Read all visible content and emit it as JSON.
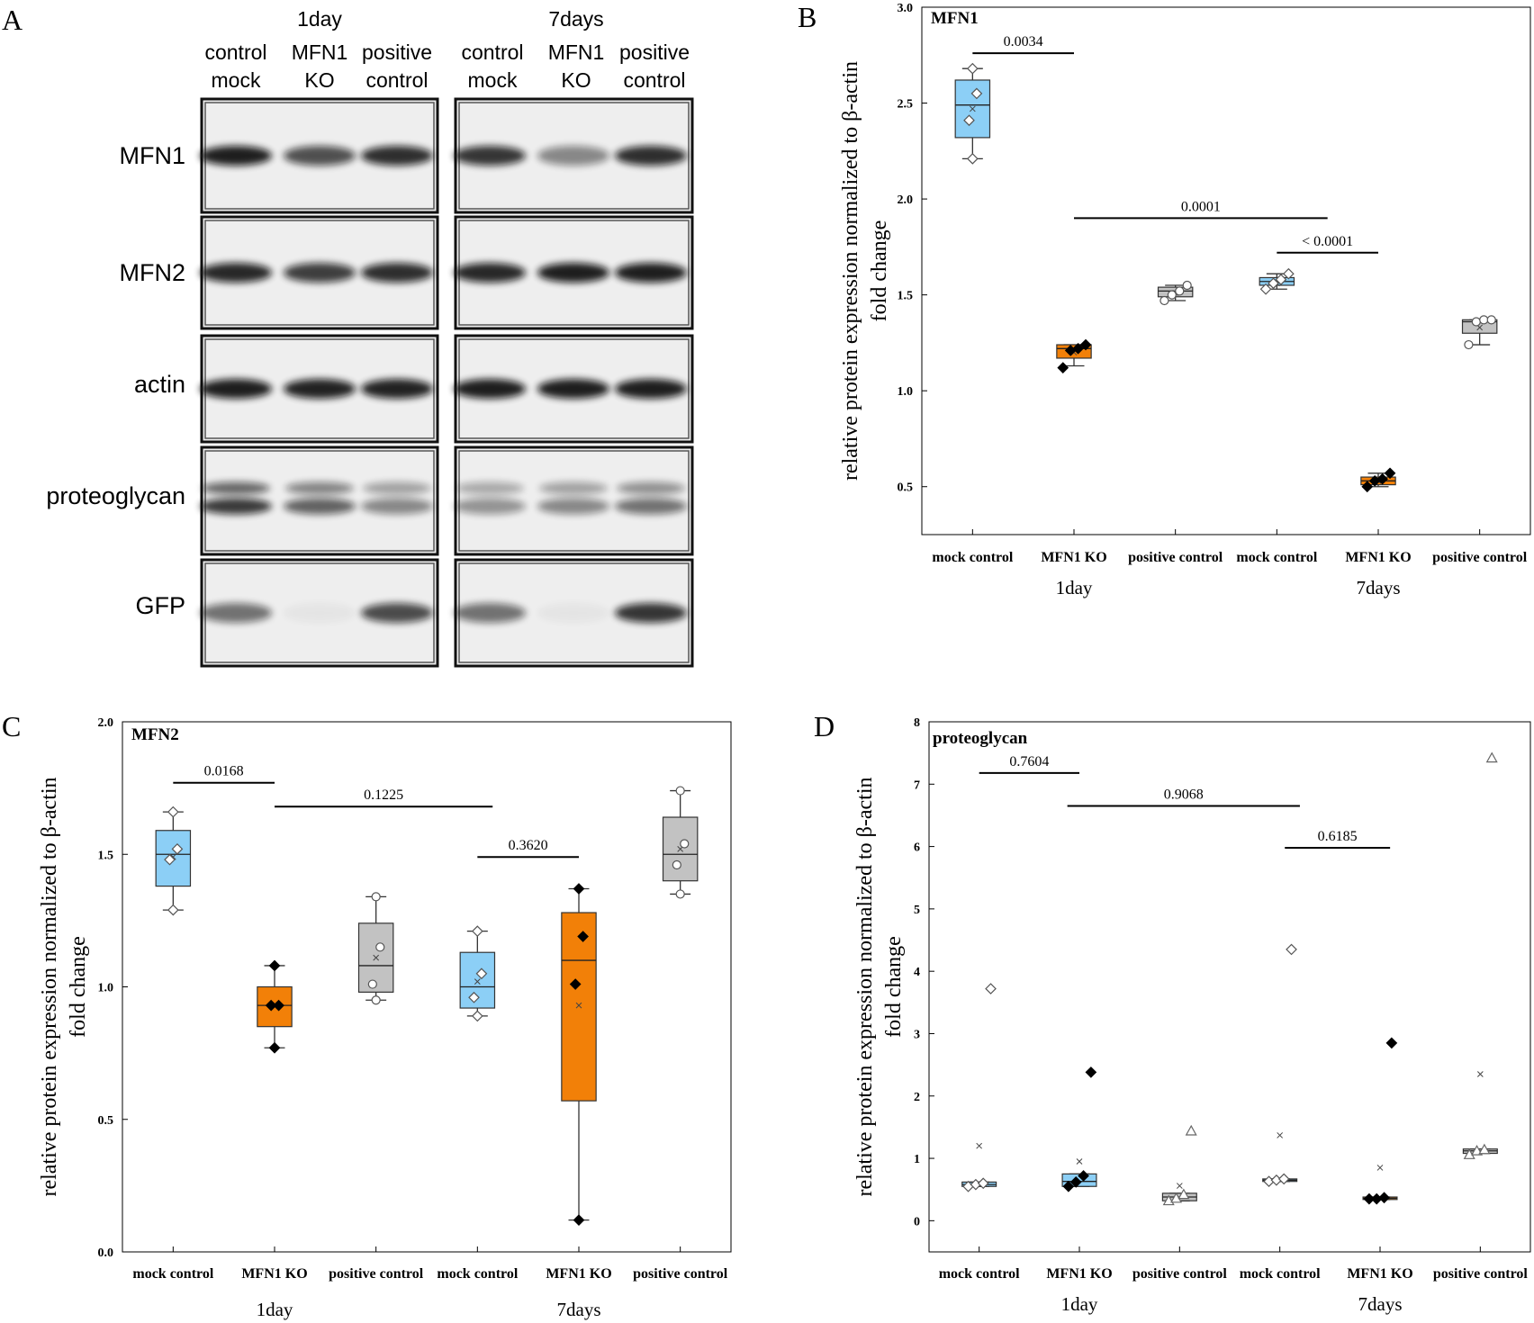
{
  "panel_letters": [
    "A",
    "B",
    "C",
    "D"
  ],
  "colors": {
    "blue": "#8ccff6",
    "orange": "#f28008",
    "gray": "#c2c2c2",
    "box_stroke": "#444444",
    "axis": "#000000"
  },
  "blot": {
    "timepoints": [
      "1day",
      "7days"
    ],
    "lanes": [
      {
        "line1": "control",
        "line2": "mock"
      },
      {
        "line1": "MFN1",
        "line2": "KO"
      },
      {
        "line1": "positive",
        "line2": "control"
      },
      {
        "line1": "control",
        "line2": "mock"
      },
      {
        "line1": "MFN1",
        "line2": "KO"
      },
      {
        "line1": "positive",
        "line2": "control"
      }
    ],
    "rows": [
      {
        "label": "MFN1",
        "bands": [
          [
            0.92,
            0.7,
            0.85
          ],
          [
            0.82,
            0.45,
            0.85
          ]
        ],
        "double": false
      },
      {
        "label": "MFN2",
        "bands": [
          [
            0.88,
            0.78,
            0.85
          ],
          [
            0.88,
            0.92,
            0.92
          ]
        ],
        "double": false
      },
      {
        "label": "actin",
        "bands": [
          [
            0.92,
            0.9,
            0.9
          ],
          [
            0.92,
            0.92,
            0.92
          ]
        ],
        "double": false
      },
      {
        "label": "proteoglycan",
        "bands": [
          [
            0.8,
            0.62,
            0.45
          ],
          [
            0.4,
            0.45,
            0.55
          ]
        ],
        "double": true
      },
      {
        "label": "GFP",
        "bands": [
          [
            0.55,
            0.04,
            0.72
          ],
          [
            0.55,
            0.04,
            0.82
          ]
        ],
        "double": false
      }
    ]
  },
  "chart_data": [
    {
      "type": "box",
      "panel": "B",
      "title": "MFN1",
      "ylabel_line1": "relative protein expression normalized to β-actin",
      "ylabel_line2": "fold change",
      "ylim": [
        0.25,
        3.0
      ],
      "yticks": [
        0.5,
        1.0,
        1.5,
        2.0,
        2.5,
        3.0
      ],
      "ytick_labels": [
        "0.5",
        "1.0",
        "1.5",
        "2.0",
        "2.5",
        "3.0"
      ],
      "categories": [
        "mock control",
        "MFN1 KO",
        "positive control",
        "mock control",
        "MFN1 KO",
        "positive control"
      ],
      "groups": [
        {
          "label": "1day"
        },
        {
          "label": "7days"
        }
      ],
      "boxes": [
        {
          "color": "blue",
          "q1": 2.32,
          "median": 2.49,
          "q3": 2.62,
          "whisker_low": 2.21,
          "whisker_high": 2.68,
          "mean": 2.47,
          "points": [
            2.21,
            2.41,
            2.55,
            2.68
          ],
          "marker": "diamond-open"
        },
        {
          "color": "orange",
          "q1": 1.17,
          "median": 1.22,
          "q3": 1.24,
          "whisker_low": 1.13,
          "whisker_high": 1.24,
          "mean": 1.2,
          "points": [
            1.12,
            1.21,
            1.22,
            1.24
          ],
          "marker": "diamond-filled"
        },
        {
          "color": "gray",
          "q1": 1.49,
          "median": 1.52,
          "q3": 1.54,
          "whisker_low": 1.47,
          "whisker_high": 1.55,
          "mean": 1.51,
          "points": [
            1.47,
            1.5,
            1.52,
            1.55
          ],
          "marker": "circle-open"
        },
        {
          "color": "blue",
          "q1": 1.55,
          "median": 1.57,
          "q3": 1.59,
          "whisker_low": 1.53,
          "whisker_high": 1.61,
          "mean": 1.56,
          "points": [
            1.53,
            1.56,
            1.58,
            1.61
          ],
          "marker": "diamond-open"
        },
        {
          "color": "orange",
          "q1": 0.51,
          "median": 0.53,
          "q3": 0.55,
          "whisker_low": 0.5,
          "whisker_high": 0.57,
          "mean": 0.53,
          "points": [
            0.5,
            0.53,
            0.54,
            0.57
          ],
          "marker": "diamond-filled"
        },
        {
          "color": "gray",
          "q1": 1.3,
          "median": 1.36,
          "q3": 1.37,
          "whisker_low": 1.24,
          "whisker_high": 1.37,
          "mean": 1.33,
          "points": [
            1.24,
            1.36,
            1.37,
            1.37
          ],
          "marker": "circle-open"
        }
      ],
      "annotations": [
        {
          "text": "0.0034",
          "from": 0,
          "to": 1,
          "y": 2.76
        },
        {
          "text": "0.0001",
          "from": 1,
          "to": 3.5,
          "y": 1.9
        },
        {
          "text": "< 0.0001",
          "from": 3,
          "to": 4,
          "y": 1.72
        }
      ]
    },
    {
      "type": "box",
      "panel": "C",
      "title": "MFN2",
      "ylabel_line1": "relative protein expression normalized to β-actin",
      "ylabel_line2": "fold change",
      "ylim": [
        0.0,
        2.0
      ],
      "yticks": [
        0.0,
        0.5,
        1.0,
        1.5,
        2.0
      ],
      "ytick_labels": [
        "0.0",
        "0.5",
        "1.0",
        "1.5",
        "2.0"
      ],
      "categories": [
        "mock control",
        "MFN1 KO",
        "positive control",
        "mock control",
        "MFN1 KO",
        "positive control"
      ],
      "groups": [
        {
          "label": "1day"
        },
        {
          "label": "7days"
        }
      ],
      "boxes": [
        {
          "color": "blue",
          "q1": 1.38,
          "median": 1.5,
          "q3": 1.59,
          "whisker_low": 1.29,
          "whisker_high": 1.66,
          "mean": 1.49,
          "points": [
            1.29,
            1.48,
            1.52,
            1.66
          ],
          "marker": "diamond-open"
        },
        {
          "color": "orange",
          "q1": 0.85,
          "median": 0.93,
          "q3": 1.0,
          "whisker_low": 0.77,
          "whisker_high": 1.08,
          "mean": 0.93,
          "points": [
            0.77,
            0.93,
            0.93,
            1.08
          ],
          "marker": "diamond-filled"
        },
        {
          "color": "gray",
          "q1": 0.98,
          "median": 1.08,
          "q3": 1.24,
          "whisker_low": 0.95,
          "whisker_high": 1.34,
          "mean": 1.11,
          "points": [
            0.95,
            1.01,
            1.15,
            1.34
          ],
          "marker": "circle-open"
        },
        {
          "color": "blue",
          "q1": 0.92,
          "median": 1.0,
          "q3": 1.13,
          "whisker_low": 0.89,
          "whisker_high": 1.21,
          "mean": 1.02,
          "points": [
            0.89,
            0.96,
            1.05,
            1.21
          ],
          "marker": "diamond-open"
        },
        {
          "color": "orange",
          "q1": 0.57,
          "median": 1.1,
          "q3": 1.28,
          "whisker_low": 0.12,
          "whisker_high": 1.37,
          "mean": 0.93,
          "points": [
            0.12,
            1.01,
            1.19,
            1.37
          ],
          "marker": "diamond-filled"
        },
        {
          "color": "gray",
          "q1": 1.4,
          "median": 1.5,
          "q3": 1.64,
          "whisker_low": 1.35,
          "whisker_high": 1.74,
          "mean": 1.52,
          "points": [
            1.35,
            1.46,
            1.54,
            1.74
          ],
          "marker": "circle-open"
        }
      ],
      "annotations": [
        {
          "text": "0.0168",
          "from": 0,
          "to": 1,
          "y": 1.77
        },
        {
          "text": "0.1225",
          "from": 1,
          "to": 3.15,
          "y": 1.68
        },
        {
          "text": "0.3620",
          "from": 3,
          "to": 4,
          "y": 1.49
        }
      ]
    },
    {
      "type": "box",
      "panel": "D",
      "title": "proteoglycan",
      "ylabel_line1": "relative protein expression normalized to β-actin",
      "ylabel_line2": "fold change",
      "ylim": [
        -0.5,
        8.0
      ],
      "yticks": [
        0,
        1,
        2,
        3,
        4,
        5,
        6,
        7,
        8
      ],
      "ytick_labels": [
        "0",
        "1",
        "2",
        "3",
        "4",
        "5",
        "6",
        "7",
        "8"
      ],
      "categories": [
        "mock control",
        "MFN1 KO",
        "positive control",
        "mock control",
        "MFN1 KO",
        "positive control"
      ],
      "groups": [
        {
          "label": "1day"
        },
        {
          "label": "7days"
        }
      ],
      "boxes": [
        {
          "color": "blue",
          "q1": 0.55,
          "median": 0.58,
          "q3": 0.62,
          "whisker_low": 0.55,
          "whisker_high": 0.62,
          "mean": 1.2,
          "points": [
            0.55,
            0.58,
            0.6,
            3.72
          ],
          "marker": "diamond-open"
        },
        {
          "color": "blue",
          "q1": 0.55,
          "median": 0.63,
          "q3": 0.75,
          "whisker_low": 0.55,
          "whisker_high": 0.75,
          "mean": 0.95,
          "points": [
            0.55,
            0.62,
            0.72,
            2.38
          ],
          "marker": "diamond-filled"
        },
        {
          "color": "gray",
          "q1": 0.32,
          "median": 0.38,
          "q3": 0.44,
          "whisker_low": 0.32,
          "whisker_high": 0.44,
          "mean": 0.56,
          "points": [
            0.32,
            0.36,
            0.42,
            1.44
          ],
          "marker": "triangle-open"
        },
        {
          "color": "blue",
          "q1": 0.63,
          "median": 0.65,
          "q3": 0.67,
          "whisker_low": 0.63,
          "whisker_high": 0.67,
          "mean": 1.37,
          "points": [
            0.63,
            0.65,
            0.67,
            4.35
          ],
          "marker": "diamond-open"
        },
        {
          "color": "orange",
          "q1": 0.34,
          "median": 0.36,
          "q3": 0.38,
          "whisker_low": 0.34,
          "whisker_high": 0.38,
          "mean": 0.85,
          "points": [
            0.35,
            0.35,
            0.37,
            2.85
          ],
          "marker": "diamond-filled"
        },
        {
          "color": "gray",
          "q1": 1.08,
          "median": 1.12,
          "q3": 1.15,
          "whisker_low": 1.08,
          "whisker_high": 1.15,
          "mean": 2.35,
          "points": [
            1.06,
            1.12,
            1.14,
            7.42
          ],
          "marker": "triangle-open"
        }
      ],
      "annotations": [
        {
          "text": "0.7604",
          "from": 0,
          "to": 1,
          "y": 7.18
        },
        {
          "text": "0.9068",
          "from": 0.88,
          "to": 3.2,
          "y": 6.65
        },
        {
          "text": "0.6185",
          "from": 3.05,
          "to": 4.1,
          "y": 5.98
        }
      ]
    }
  ]
}
